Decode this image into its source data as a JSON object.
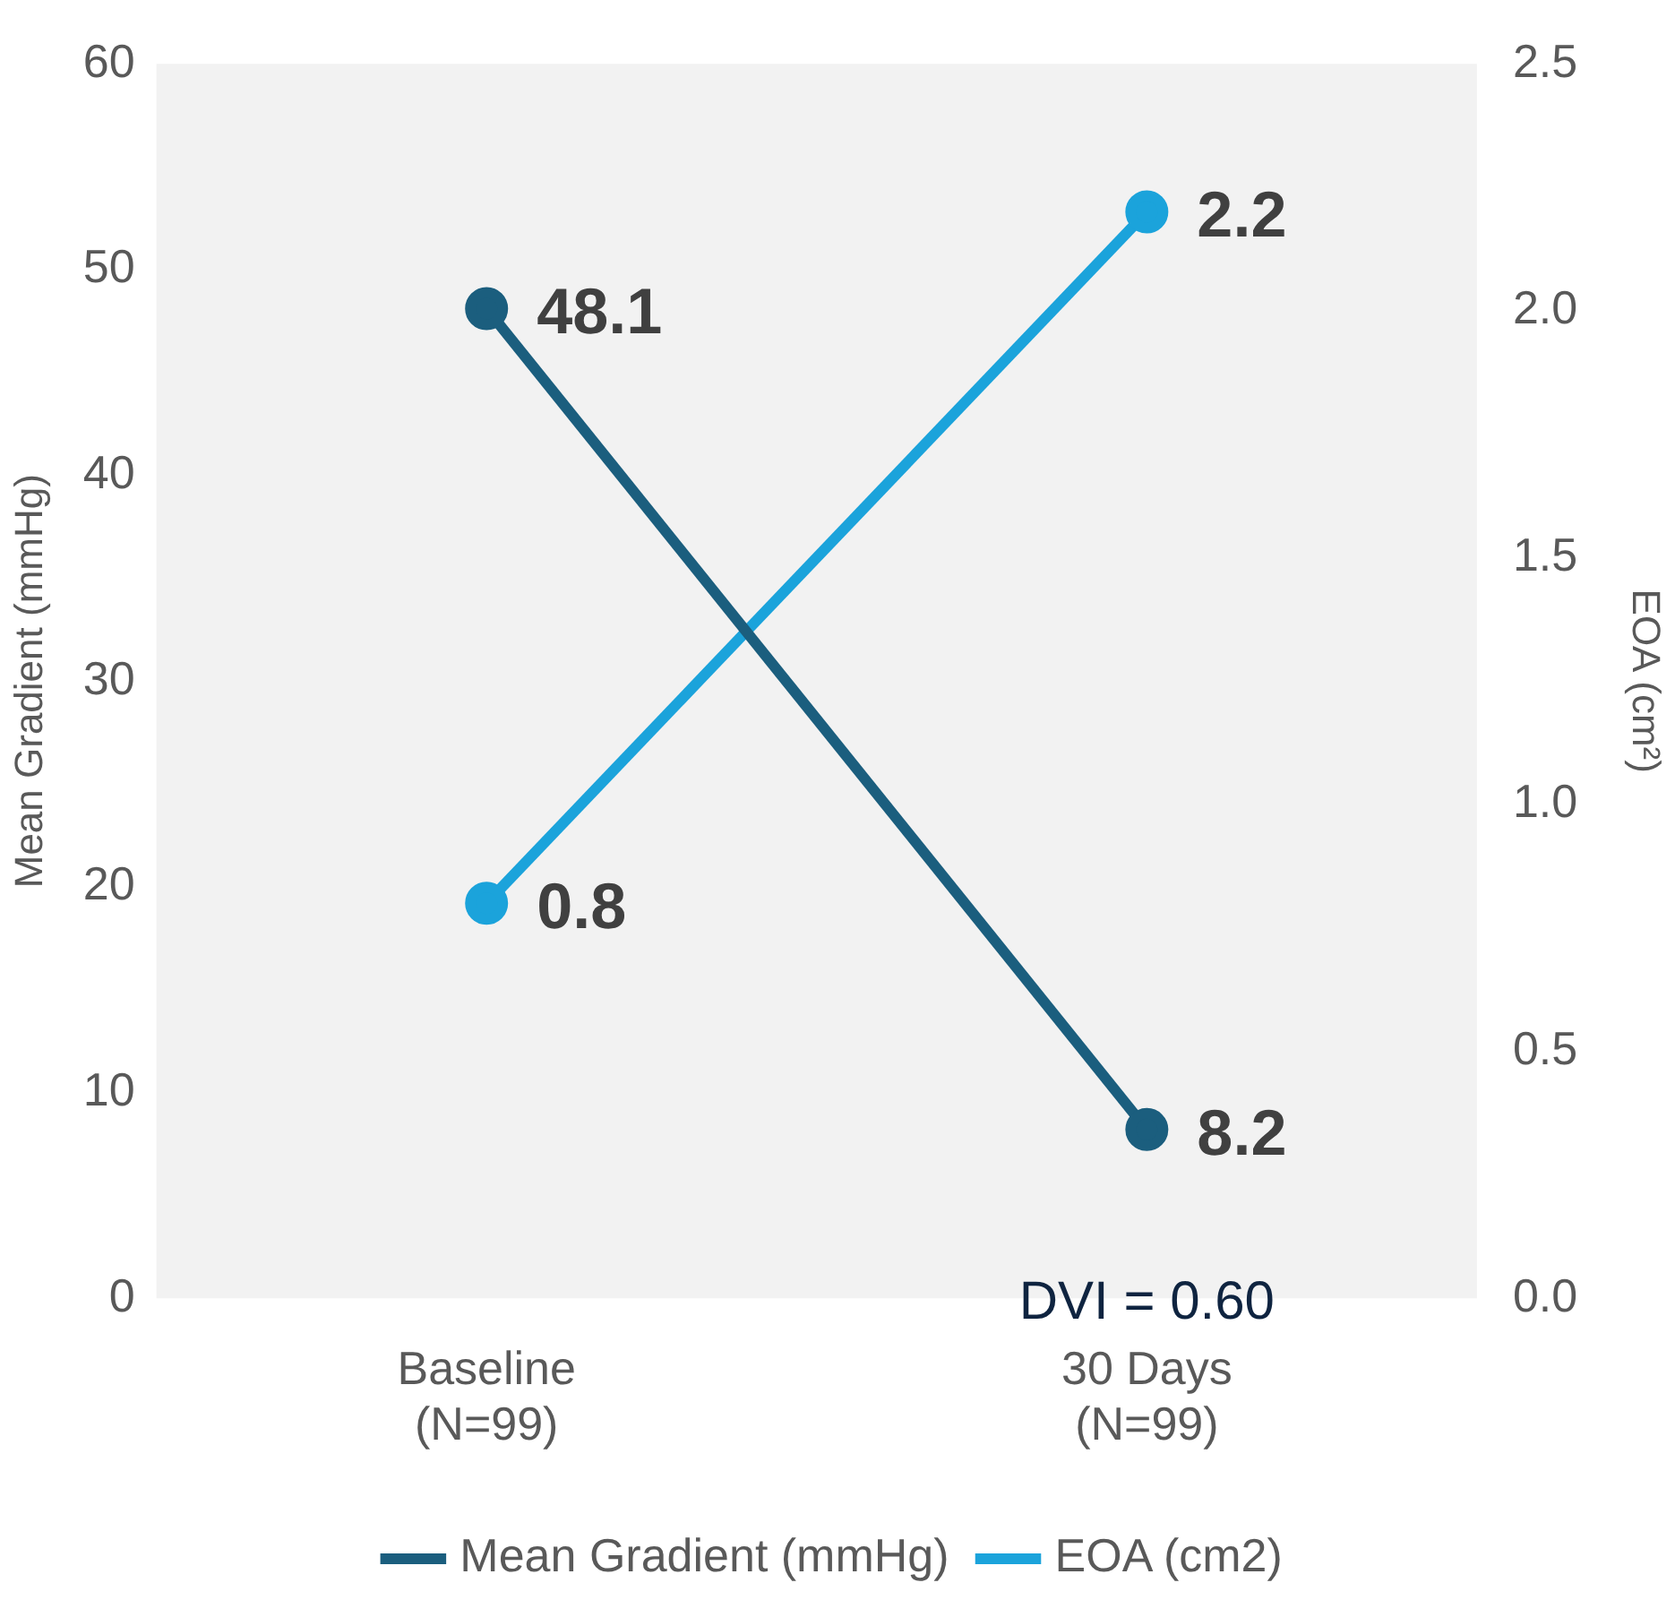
{
  "chart_data": {
    "type": "line",
    "categories": [
      "Baseline\n(N=99)",
      "30 Days\n(N=99)"
    ],
    "series": [
      {
        "name": "Mean Gradient (mmHg)",
        "color": "#1b5e7e",
        "values": [
          48.1,
          8.2
        ]
      },
      {
        "name": "EOA (cm2)",
        "color": "#1ba3db",
        "values": [
          0.8,
          2.2
        ],
        "axis": "y2"
      }
    ],
    "ylabel": "Mean Gradient (mmHg)",
    "y2label": "EOA (cm²)",
    "ylim": [
      0,
      60
    ],
    "yticks": [
      0,
      10,
      20,
      30,
      40,
      50,
      60
    ],
    "y2lim": [
      0,
      2.5
    ],
    "y2ticks": [
      {
        "value": 0,
        "label": "0.0"
      },
      {
        "value": 0.5,
        "label": "0.5"
      },
      {
        "value": 1,
        "label": "1.0"
      },
      {
        "value": 1.5,
        "label": "1.5"
      },
      {
        "value": 2,
        "label": "2.0"
      },
      {
        "value": 2.5,
        "label": "2.5"
      }
    ],
    "annotations": [
      "DVI = 0.60"
    ],
    "data_labels": true,
    "legend": "bottom",
    "grid": false,
    "marker": "circle"
  }
}
